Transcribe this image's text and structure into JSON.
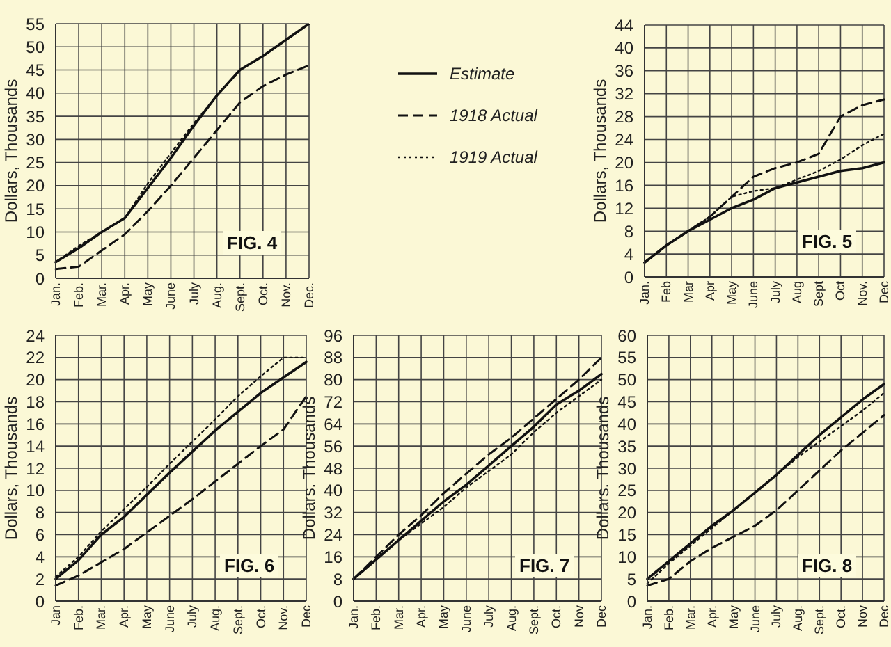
{
  "chart_data": [
    {
      "type": "line",
      "title": "FIG. 4",
      "ylabel": "Dollars, Thousands",
      "categories": [
        "Jan.",
        "Feb.",
        "Mar.",
        "Apr.",
        "May",
        "June",
        "July",
        "Aug.",
        "Sept.",
        "Oct.",
        "Nov.",
        "Dec."
      ],
      "ylim": [
        0,
        55
      ],
      "yticks": [
        0,
        5,
        10,
        15,
        20,
        25,
        30,
        35,
        40,
        45,
        50,
        55
      ],
      "grid": true,
      "legend": "right",
      "series": [
        {
          "name": "Estimate",
          "color": "#111111",
          "line_style": "solid",
          "values": [
            3.5,
            6.5,
            10,
            13,
            19.5,
            26,
            33,
            39.5,
            45,
            48,
            51.5,
            55
          ]
        },
        {
          "name": "1918 Actual",
          "color": "#111111",
          "line_style": "dashed",
          "values": [
            2,
            2.5,
            6,
            9.5,
            14.5,
            20,
            26,
            32,
            38,
            41.5,
            44,
            46
          ]
        },
        {
          "name": "1919 Actual",
          "color": "#111111",
          "line_style": "dotted",
          "values": [
            3.5,
            7,
            10,
            13,
            20.5,
            27,
            33.5,
            39.5,
            45,
            null,
            null,
            null
          ]
        }
      ]
    },
    {
      "type": "line",
      "title": "FIG. 5",
      "ylabel": "Dollars, Thousands",
      "categories": [
        "Jan.",
        "Feb",
        "Mar",
        "Apr",
        "May",
        "June",
        "July",
        "Aug",
        "Sept",
        "Oct",
        "Nov.",
        "Dec"
      ],
      "ylim": [
        0,
        44
      ],
      "yticks": [
        0,
        4,
        8,
        12,
        16,
        20,
        24,
        28,
        32,
        36,
        40,
        44
      ],
      "grid": true,
      "series": [
        {
          "color": "#111111",
          "line_style": "solid",
          "values": [
            2.5,
            5.5,
            8,
            10,
            12,
            13.5,
            15.5,
            16.5,
            17.5,
            18.5,
            19,
            20
          ]
        },
        {
          "color": "#111111",
          "line_style": "dashed",
          "values": [
            2.5,
            5.5,
            8,
            10.5,
            14,
            17.5,
            19,
            20,
            21.5,
            28,
            30,
            31
          ]
        },
        {
          "color": "#111111",
          "line_style": "dotted",
          "values": [
            2.5,
            5.5,
            8,
            10.5,
            14,
            15,
            15.5,
            17,
            18.5,
            20.5,
            23,
            25
          ]
        }
      ]
    },
    {
      "type": "line",
      "title": "FIG. 6",
      "ylabel": "Dollars, Thousands",
      "categories": [
        "Jan",
        "Feb.",
        "Mar.",
        "Apr.",
        "May",
        "June",
        "July",
        "Aug.",
        "Sept.",
        "Oct.",
        "Nov.",
        "Dec"
      ],
      "ylim": [
        0,
        24
      ],
      "yticks": [
        0,
        2,
        4,
        6,
        8,
        10,
        12,
        14,
        16,
        18,
        20,
        22,
        24
      ],
      "grid": true,
      "series": [
        {
          "color": "#111111",
          "line_style": "solid",
          "values": [
            2,
            3.7,
            6,
            7.6,
            9.6,
            11.6,
            13.5,
            15.4,
            17.1,
            18.8,
            20.2,
            21.6
          ]
        },
        {
          "color": "#111111",
          "line_style": "dashed",
          "values": [
            1.4,
            2.3,
            3.5,
            4.7,
            6.2,
            7.7,
            9.2,
            10.8,
            12.4,
            14,
            15.5,
            18.5
          ]
        },
        {
          "color": "#111111",
          "line_style": "dotted",
          "values": [
            2.2,
            4,
            6.3,
            8.3,
            10.3,
            12.4,
            14.4,
            16.4,
            18.5,
            20.3,
            22,
            22
          ]
        }
      ]
    },
    {
      "type": "line",
      "title": "FIG. 7",
      "ylabel": "Dollars. Thousands",
      "categories": [
        "Jan.",
        "Feb.",
        "Mar.",
        "Apr.",
        "May",
        "June",
        "July",
        "Aug.",
        "Sept.",
        "Oct.",
        "Nov",
        "Dec"
      ],
      "ylim": [
        0,
        96
      ],
      "yticks": [
        0,
        8,
        16,
        24,
        32,
        40,
        48,
        56,
        64,
        72,
        80,
        88,
        96
      ],
      "grid": true,
      "series": [
        {
          "color": "#111111",
          "line_style": "solid",
          "values": [
            8,
            15,
            22,
            29,
            36,
            42,
            49,
            56,
            63,
            71,
            76,
            82
          ]
        },
        {
          "color": "#111111",
          "line_style": "dashed",
          "values": [
            8,
            16,
            24,
            31,
            39,
            46,
            53,
            59,
            66,
            73,
            80,
            88
          ]
        },
        {
          "color": "#111111",
          "line_style": "dotted",
          "values": [
            8,
            15,
            22,
            28,
            34,
            41,
            47,
            53,
            61,
            68,
            74,
            80
          ]
        }
      ]
    },
    {
      "type": "line",
      "title": "FIG. 8",
      "ylabel": "Dollars. Thousands",
      "categories": [
        "Jan.",
        "Feb.",
        "Mar.",
        "Apr.",
        "May",
        "June",
        "July",
        "Aug.",
        "Sept.",
        "Oct.",
        "Nov",
        "Dec"
      ],
      "ylim": [
        0,
        60
      ],
      "yticks": [
        0,
        5,
        10,
        15,
        20,
        25,
        30,
        35,
        40,
        45,
        50,
        55,
        60
      ],
      "grid": true,
      "series": [
        {
          "color": "#111111",
          "line_style": "solid",
          "values": [
            5,
            9,
            13,
            17,
            20.5,
            24.5,
            28.5,
            33,
            37.5,
            41.5,
            45.5,
            49
          ]
        },
        {
          "color": "#111111",
          "line_style": "dashed",
          "values": [
            3.5,
            5,
            9,
            12,
            14.5,
            17,
            20.5,
            25,
            29.5,
            34,
            38,
            42
          ]
        },
        {
          "color": "#111111",
          "line_style": "dotted",
          "values": [
            4,
            8.5,
            12.5,
            16.5,
            20.5,
            24.5,
            28.5,
            32.5,
            36,
            39.5,
            43,
            47
          ]
        }
      ]
    }
  ]
}
